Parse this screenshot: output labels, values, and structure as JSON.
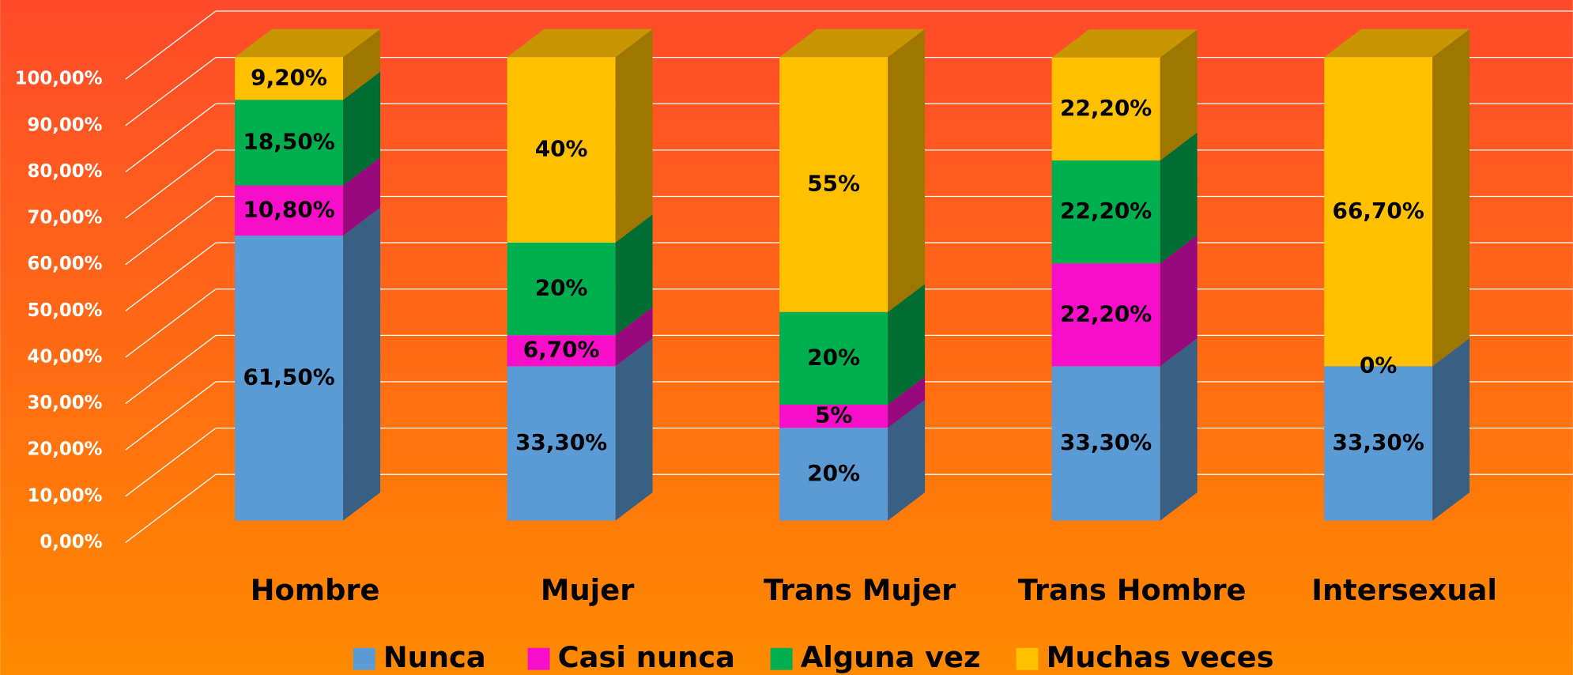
{
  "chart_data": {
    "type": "bar3d_stacked",
    "categories": [
      "Hombre",
      "Mujer",
      "Trans Mujer",
      "Trans Hombre",
      "Intersexual"
    ],
    "series": [
      {
        "name": "Nunca",
        "color": "#5b9bd5",
        "values": [
          61.5,
          33.3,
          20,
          33.3,
          33.3
        ],
        "value_labels": [
          "61,50%",
          "33,30%",
          "20%",
          "33,30%",
          "33,30%"
        ]
      },
      {
        "name": "Casi nunca",
        "color": "#f70ecb",
        "values": [
          10.8,
          6.7,
          5,
          22.2,
          0
        ],
        "value_labels": [
          "10,80%",
          "6,70%",
          "5%",
          "22,20%",
          "0%"
        ]
      },
      {
        "name": "Alguna vez",
        "color": "#00b050",
        "values": [
          18.5,
          20,
          20,
          22.2,
          null
        ],
        "value_labels": [
          "18,50%",
          "20%",
          "20%",
          "22,20%",
          null
        ]
      },
      {
        "name": "Muchas veces",
        "color": "#ffc000",
        "values": [
          9.2,
          40,
          55,
          22.2,
          66.7
        ],
        "value_labels": [
          "9,20%",
          "40%",
          "55%",
          "22,20%",
          "66,70%"
        ]
      }
    ],
    "ylim": [
      0,
      100
    ],
    "yticks": [
      {
        "value": 0,
        "label": "0,00%"
      },
      {
        "value": 10,
        "label": "10,00%"
      },
      {
        "value": 20,
        "label": "20,00%"
      },
      {
        "value": 30,
        "label": "30,00%"
      },
      {
        "value": 40,
        "label": "40,00%"
      },
      {
        "value": 50,
        "label": "50,00%"
      },
      {
        "value": 60,
        "label": "60,00%"
      },
      {
        "value": 70,
        "label": "70,00%"
      },
      {
        "value": 80,
        "label": "80,00%"
      },
      {
        "value": 90,
        "label": "90,00%"
      },
      {
        "value": 100,
        "label": "100,00%"
      }
    ],
    "grid": true,
    "legend": "bottom"
  }
}
